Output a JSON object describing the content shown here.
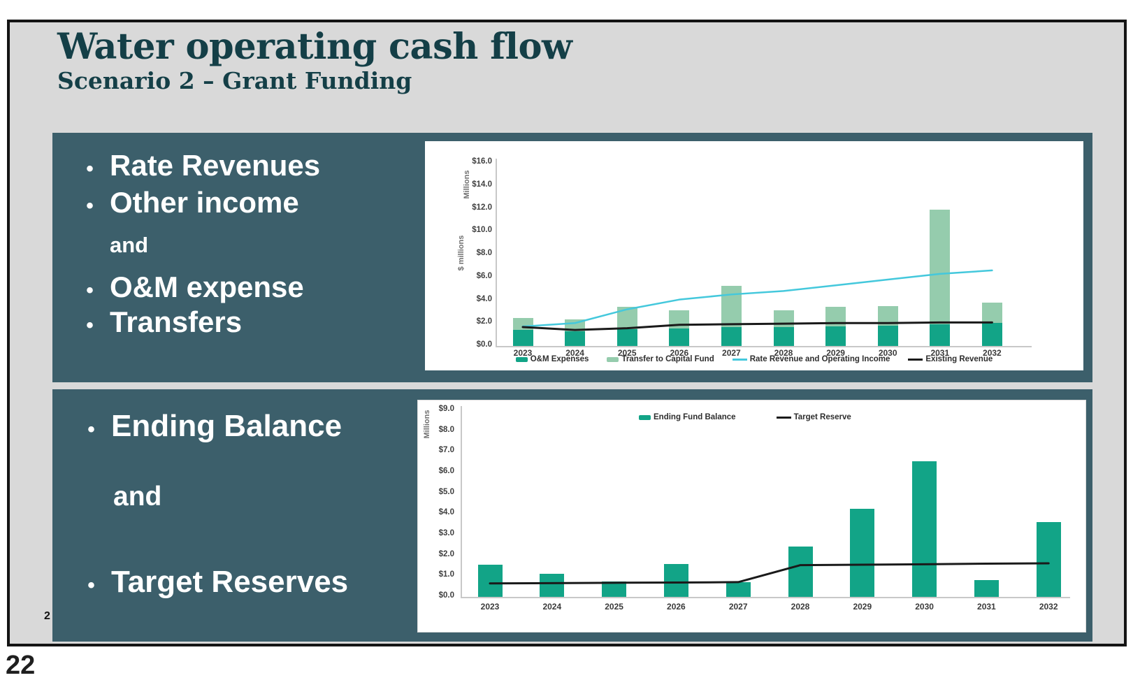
{
  "slide": {
    "title": "Water operating cash flow",
    "subtitle": "Scenario 2 – Grant Funding",
    "page_number": "22",
    "inner_page_number": "2"
  },
  "top_panel": {
    "bullets": [
      {
        "marker": "•",
        "text": "Rate Revenues"
      },
      {
        "marker": "•",
        "text": "Other income"
      },
      {
        "marker": "",
        "text": "and"
      },
      {
        "marker": "•",
        "text": "O&M expense"
      },
      {
        "marker": "•",
        "text": "Transfers"
      }
    ]
  },
  "bottom_panel": {
    "bullets": [
      {
        "marker": "•",
        "text": "Ending Balance"
      },
      {
        "marker": "",
        "text": "and"
      },
      {
        "marker": "•",
        "text": "Target Reserves"
      }
    ]
  },
  "colors": {
    "slide_bg": "#D9D9D9",
    "frame_border": "#141414",
    "panel_bg": "#3C5F6B",
    "title_text": "#143F47",
    "bullet_text": "#FFFFFF",
    "bar_dark_green": "#12A487",
    "bar_light_green": "#95CCAD",
    "line_cyan": "#44C8DC",
    "line_black": "#1A1A1A"
  },
  "chart_data": [
    {
      "type": "bar",
      "title": "",
      "categories": [
        "2023",
        "2024",
        "2025",
        "2026",
        "2027",
        "2028",
        "2029",
        "2030",
        "2031",
        "2032"
      ],
      "series": [
        {
          "name": "O&M Expenses",
          "kind": "bar",
          "stack": true,
          "color": "#12A487",
          "values": [
            1.4,
            1.3,
            1.45,
            1.55,
            1.65,
            1.65,
            1.7,
            1.75,
            1.9,
            2.0
          ]
        },
        {
          "name": "Transfer to Capital Fund",
          "kind": "bar",
          "stack": true,
          "color": "#95CCAD",
          "values": [
            1.05,
            1.05,
            1.95,
            1.55,
            3.6,
            1.45,
            1.7,
            1.75,
            10.0,
            1.8
          ]
        },
        {
          "name": "Rate Revenue and Operating Income",
          "kind": "line",
          "color": "#44C8DC",
          "values": [
            1.7,
            2.0,
            3.2,
            4.05,
            4.5,
            4.8,
            5.3,
            5.8,
            6.3,
            6.6
          ]
        },
        {
          "name": "Existing Revenue",
          "kind": "line",
          "color": "#1A1A1A",
          "values": [
            1.65,
            1.4,
            1.55,
            1.85,
            1.9,
            1.95,
            2.0,
            2.0,
            2.05,
            2.05
          ]
        }
      ],
      "ylim": [
        0,
        16
      ],
      "ytick_step": 2,
      "ytick_prefix": "$",
      "ylabel_outer": "Millions",
      "ylabel_inner": "$ millions",
      "grid": false,
      "legend_position": "bottom"
    },
    {
      "type": "bar",
      "title": "",
      "categories": [
        "2023",
        "2024",
        "2025",
        "2026",
        "2027",
        "2028",
        "2029",
        "2030",
        "2031",
        "2032"
      ],
      "series": [
        {
          "name": "Ending Fund Balance",
          "kind": "bar",
          "stack": false,
          "color": "#12A487",
          "values": [
            1.55,
            1.1,
            0.75,
            1.6,
            0.72,
            2.43,
            4.25,
            6.55,
            0.82,
            3.6
          ]
        },
        {
          "name": "Target Reserve",
          "kind": "line",
          "color": "#1A1A1A",
          "values": [
            0.65,
            0.66,
            0.68,
            0.69,
            0.71,
            1.53,
            1.55,
            1.57,
            1.6,
            1.62
          ]
        }
      ],
      "ylim": [
        0,
        9
      ],
      "ytick_step": 1,
      "ytick_prefix": "$",
      "ylabel_outer": "Millions",
      "ylabel_inner": "",
      "grid": false,
      "legend_position": "top"
    }
  ]
}
